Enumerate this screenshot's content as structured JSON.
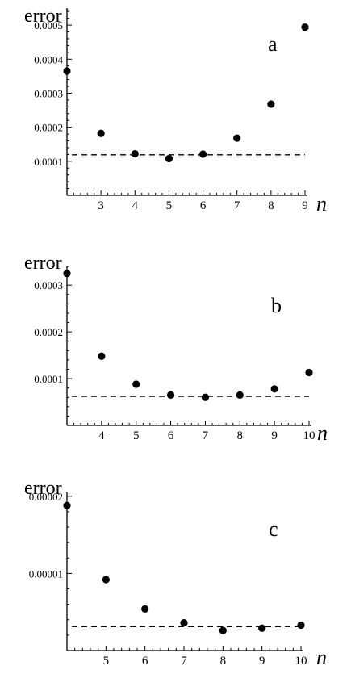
{
  "chart_data": [
    {
      "type": "scatter",
      "panel_label": "a",
      "ylabel": "error",
      "xlabel": "n",
      "xlim": [
        2,
        9
      ],
      "ylim": [
        0,
        0.00055
      ],
      "xticks": [
        3,
        4,
        5,
        6,
        7,
        8,
        9
      ],
      "xtick_labels": [
        "3",
        "4",
        "5",
        "6",
        "7",
        "8",
        "9"
      ],
      "yticks": [
        0.0001,
        0.0002,
        0.0003,
        0.0004,
        0.0005
      ],
      "ytick_labels": [
        "0.0001",
        "0.0002",
        "0.0003",
        "0.0004",
        "0.0005"
      ],
      "points": [
        {
          "x": 2,
          "y": 0.000365
        },
        {
          "x": 3,
          "y": 0.000182
        },
        {
          "x": 4,
          "y": 0.000122
        },
        {
          "x": 5,
          "y": 0.000108
        },
        {
          "x": 6,
          "y": 0.000121
        },
        {
          "x": 7,
          "y": 0.000168
        },
        {
          "x": 8,
          "y": 0.000268
        },
        {
          "x": 9,
          "y": 0.000494
        }
      ],
      "reference_line": {
        "y": 0.000119,
        "style": "dashed"
      },
      "grid": false
    },
    {
      "type": "scatter",
      "panel_label": "b",
      "ylabel": "error",
      "xlabel": "n",
      "xlim": [
        3,
        10
      ],
      "ylim": [
        0,
        0.00034
      ],
      "xticks": [
        4,
        5,
        6,
        7,
        8,
        9,
        10
      ],
      "xtick_labels": [
        "4",
        "5",
        "6",
        "7",
        "8",
        "9",
        "10"
      ],
      "yticks": [
        0.0001,
        0.0002,
        0.0003
      ],
      "ytick_labels": [
        "0.0001",
        "0.0002",
        "0.0003"
      ],
      "points": [
        {
          "x": 3,
          "y": 0.000325
        },
        {
          "x": 4,
          "y": 0.000148
        },
        {
          "x": 5,
          "y": 8.8e-05
        },
        {
          "x": 6,
          "y": 6.5e-05
        },
        {
          "x": 7,
          "y": 6e-05
        },
        {
          "x": 8,
          "y": 6.5e-05
        },
        {
          "x": 9,
          "y": 7.8e-05
        },
        {
          "x": 10,
          "y": 0.000113
        }
      ],
      "reference_line": {
        "y": 6.2e-05,
        "style": "dashed"
      },
      "grid": false
    },
    {
      "type": "scatter",
      "panel_label": "c",
      "ylabel": "error",
      "xlabel": "n",
      "xlim": [
        4,
        10
      ],
      "ylim": [
        0,
        2.05e-05
      ],
      "xticks": [
        5,
        6,
        7,
        8,
        9,
        10
      ],
      "xtick_labels": [
        "5",
        "6",
        "7",
        "8",
        "9",
        "10"
      ],
      "yticks": [
        1e-05,
        2e-05
      ],
      "ytick_labels": [
        "0.00001",
        "0.00002"
      ],
      "points": [
        {
          "x": 4,
          "y": 1.88e-05
        },
        {
          "x": 5,
          "y": 9.2e-06
        },
        {
          "x": 6,
          "y": 5.4e-06
        },
        {
          "x": 7,
          "y": 3.6e-06
        },
        {
          "x": 8,
          "y": 2.6e-06
        },
        {
          "x": 9,
          "y": 2.9e-06
        },
        {
          "x": 10,
          "y": 3.3e-06
        }
      ],
      "reference_line": {
        "y": 3.1e-06,
        "style": "dashed"
      },
      "grid": false
    }
  ]
}
